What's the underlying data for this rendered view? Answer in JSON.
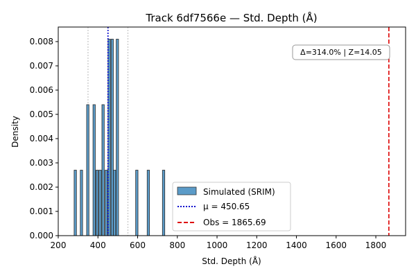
{
  "chart_data": {
    "type": "histogram",
    "title": "Track 6df7566e — Std. Depth (Å)",
    "xlabel": "Std. Depth (Å)",
    "ylabel": "Density",
    "xlim": [
      200,
      1950
    ],
    "ylim": [
      0,
      0.0086
    ],
    "xticks": [
      200,
      400,
      600,
      800,
      1000,
      1200,
      1400,
      1600,
      1800
    ],
    "yticks": [
      0,
      0.001,
      0.002,
      0.003,
      0.004,
      0.005,
      0.006,
      0.007,
      0.008
    ],
    "ytick_labels": [
      "0.000",
      "0.001",
      "0.002",
      "0.003",
      "0.004",
      "0.005",
      "0.006",
      "0.007",
      "0.008"
    ],
    "bin_width": 11.8,
    "bins": [
      {
        "left": 280,
        "density": 0.0027
      },
      {
        "left": 311,
        "density": 0.0027
      },
      {
        "left": 343,
        "density": 0.0054
      },
      {
        "left": 375,
        "density": 0.0054
      },
      {
        "left": 390,
        "density": 0.0027
      },
      {
        "left": 405,
        "density": 0.0027
      },
      {
        "left": 420,
        "density": 0.0054
      },
      {
        "left": 436,
        "density": 0.0027
      },
      {
        "left": 451,
        "density": 0.0081
      },
      {
        "left": 466,
        "density": 0.0081
      },
      {
        "left": 478,
        "density": 0.0027
      },
      {
        "left": 492,
        "density": 0.0081
      },
      {
        "left": 590,
        "density": 0.0027
      },
      {
        "left": 648,
        "density": 0.0027
      },
      {
        "left": 725,
        "density": 0.0027
      }
    ],
    "bar_color": "#5b9bc8",
    "sigma_lines": [
      350,
      551
    ],
    "mean_value": 450.65,
    "obs_value": 1865.69,
    "mean_color": "#0000cc",
    "obs_color": "#dd0000",
    "legend": {
      "position": "lower-center",
      "entries": [
        "Simulated (SRIM)",
        "μ = 450.65",
        "Obs = 1865.69"
      ]
    },
    "annotation": "Δ=314.0% | Z=14.05"
  }
}
